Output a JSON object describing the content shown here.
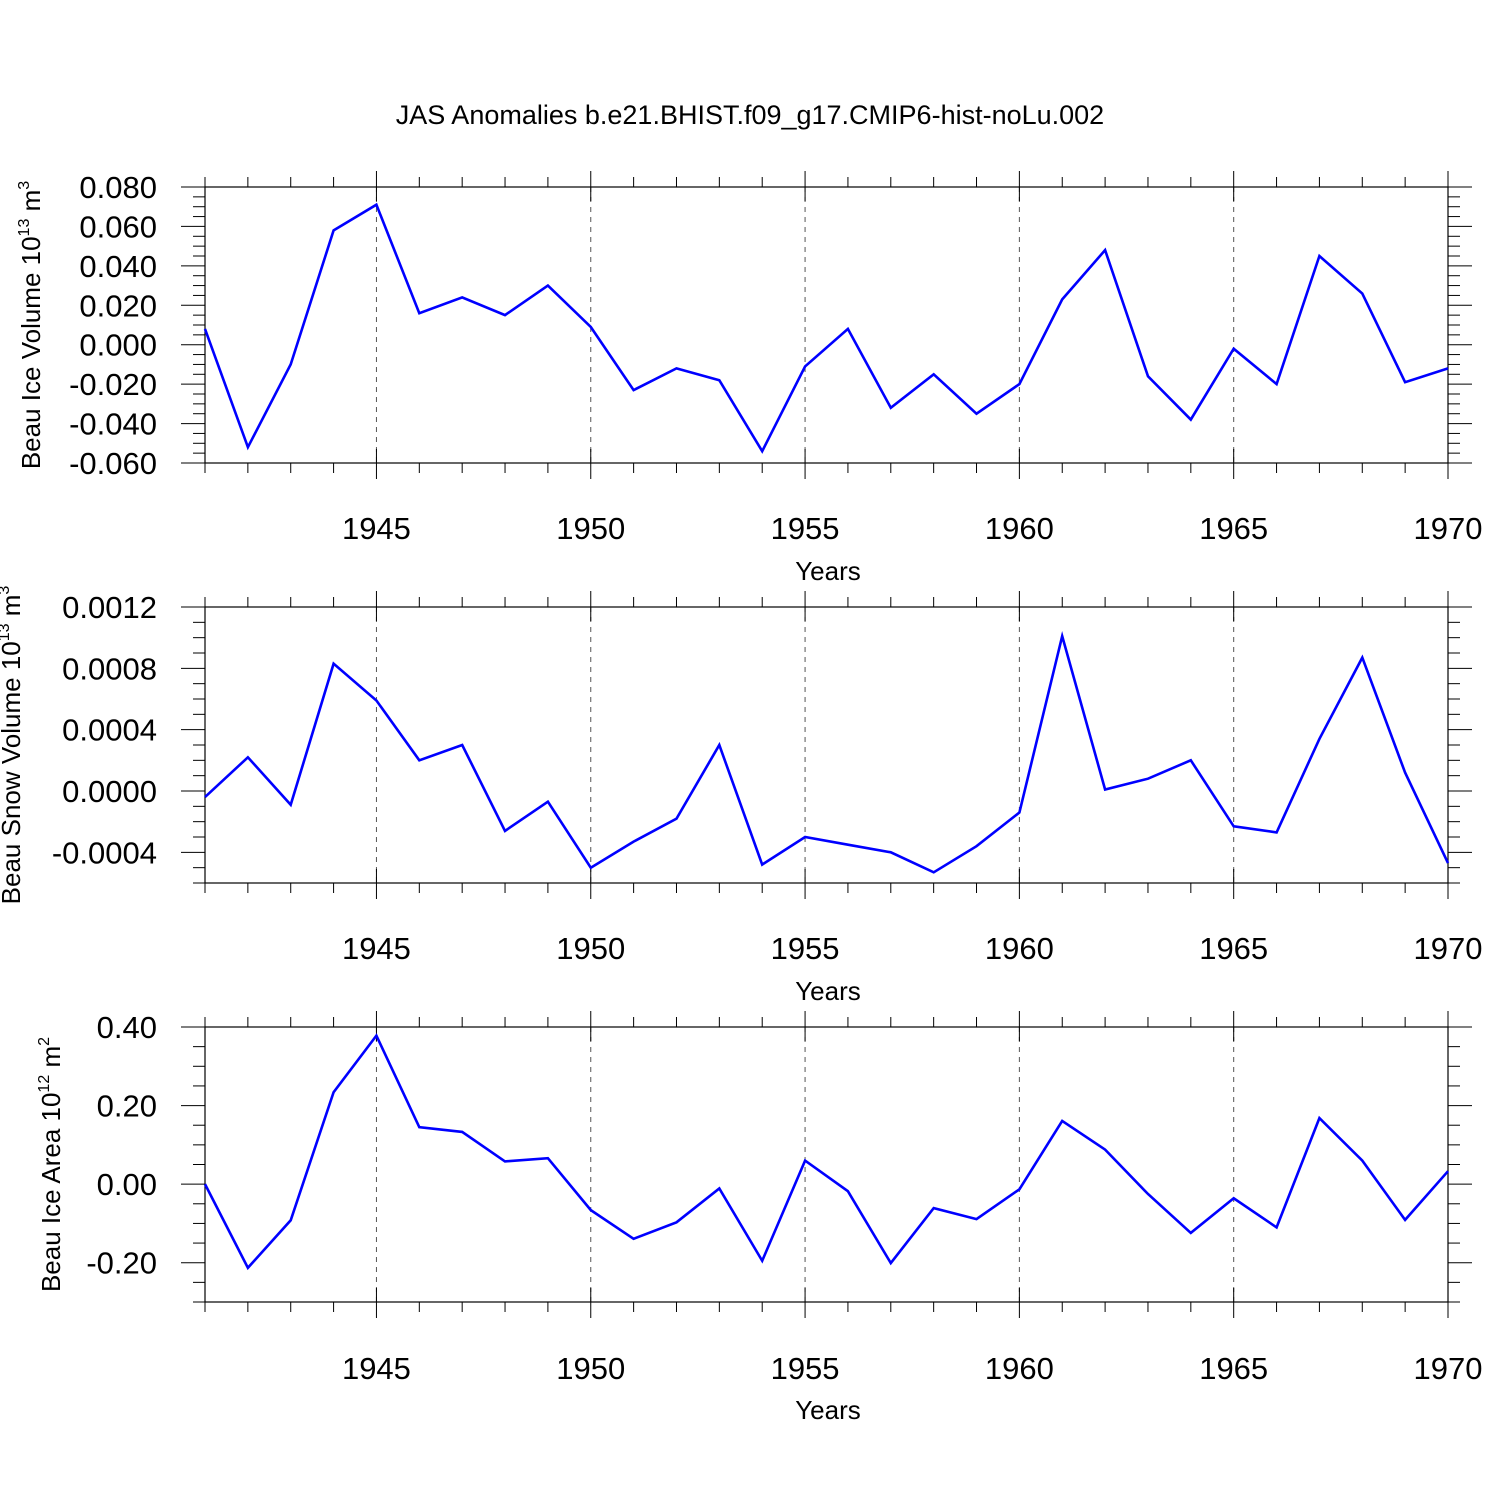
{
  "title": "JAS Anomalies b.e21.BHIST.f09_g17.CMIP6-hist-noLu.002",
  "colors": {
    "line": "#0000ff",
    "axis": "#000000",
    "grid": "#555555"
  },
  "chart_data": [
    {
      "type": "line",
      "ylabel_parts": [
        "Beau Ice Volume 10",
        "13",
        " m",
        "3"
      ],
      "xlabel": "Years",
      "xlim": [
        1941,
        1970
      ],
      "ylim": [
        -0.06,
        0.08
      ],
      "x_ticks": [
        1945,
        1950,
        1955,
        1960,
        1965,
        1970
      ],
      "x_tick_labels": [
        "1945",
        "1950",
        "1955",
        "1960",
        "1965",
        "1970"
      ],
      "y_ticks": [
        -0.06,
        -0.04,
        -0.02,
        0,
        0.02,
        0.04,
        0.06,
        0.08
      ],
      "y_tick_labels": [
        "-0.060",
        "-0.040",
        "-0.020",
        "0.000",
        "0.020",
        "0.040",
        "0.060",
        "0.080"
      ],
      "y_minor_step": 0.005,
      "grid_x": [
        1945,
        1950,
        1955,
        1960,
        1965
      ],
      "series": [
        {
          "name": "Beau Ice Volume",
          "x": [
            1941,
            1942,
            1943,
            1944,
            1945,
            1946,
            1947,
            1948,
            1949,
            1950,
            1951,
            1952,
            1953,
            1954,
            1955,
            1956,
            1957,
            1958,
            1959,
            1960,
            1961,
            1962,
            1963,
            1964,
            1965,
            1966,
            1967,
            1968,
            1969,
            1970
          ],
          "values": [
            0.008,
            -0.052,
            -0.01,
            0.058,
            0.071,
            0.016,
            0.024,
            0.015,
            0.03,
            0.009,
            -0.023,
            -0.012,
            -0.018,
            -0.054,
            -0.011,
            0.008,
            -0.032,
            -0.015,
            -0.035,
            -0.02,
            0.023,
            0.048,
            -0.016,
            -0.038,
            -0.002,
            -0.02,
            0.045,
            0.026,
            -0.019,
            -0.012
          ]
        }
      ]
    },
    {
      "type": "line",
      "ylabel_parts": [
        "Beau Snow Volume 10",
        "13",
        " m",
        "3"
      ],
      "xlabel": "Years",
      "xlim": [
        1941,
        1970
      ],
      "ylim": [
        -0.0006,
        0.0012
      ],
      "x_ticks": [
        1945,
        1950,
        1955,
        1960,
        1965,
        1970
      ],
      "x_tick_labels": [
        "1945",
        "1950",
        "1955",
        "1960",
        "1965",
        "1970"
      ],
      "y_ticks": [
        -0.0004,
        0,
        0.0004,
        0.0008,
        0.0012
      ],
      "y_tick_labels": [
        "-0.0004",
        "0.0000",
        "0.0004",
        "0.0008",
        "0.0012"
      ],
      "y_minor_step": 0.0001,
      "grid_x": [
        1945,
        1950,
        1955,
        1960,
        1965
      ],
      "series": [
        {
          "name": "Beau Snow Volume",
          "x": [
            1941,
            1942,
            1943,
            1944,
            1945,
            1946,
            1947,
            1948,
            1949,
            1950,
            1951,
            1952,
            1953,
            1954,
            1955,
            1956,
            1957,
            1958,
            1959,
            1960,
            1961,
            1962,
            1963,
            1964,
            1965,
            1966,
            1967,
            1968,
            1969,
            1970
          ],
          "values": [
            -4e-05,
            0.00022,
            -9e-05,
            0.00083,
            0.00059,
            0.0002,
            0.0003,
            -0.00026,
            -7e-05,
            -0.0005,
            -0.00033,
            -0.00018,
            0.0003,
            -0.00048,
            -0.0003,
            -0.00035,
            -0.0004,
            -0.00053,
            -0.00036,
            -0.00014,
            0.00101,
            1e-05,
            8e-05,
            0.0002,
            -0.00023,
            -0.00027,
            0.00034,
            0.00087,
            0.00012,
            -0.00047
          ]
        }
      ]
    },
    {
      "type": "line",
      "ylabel_parts": [
        "Beau Ice Area 10",
        "12",
        " m",
        "2"
      ],
      "xlabel": "Years",
      "xlim": [
        1941,
        1970
      ],
      "ylim": [
        -0.3,
        0.4
      ],
      "x_ticks": [
        1945,
        1950,
        1955,
        1960,
        1965,
        1970
      ],
      "x_tick_labels": [
        "1945",
        "1950",
        "1955",
        "1960",
        "1965",
        "1970"
      ],
      "y_ticks": [
        -0.2,
        0,
        0.2,
        0.4
      ],
      "y_tick_labels": [
        "-0.20",
        "0.00",
        "0.20",
        "0.40"
      ],
      "y_minor_step": 0.05,
      "grid_x": [
        1945,
        1950,
        1955,
        1960,
        1965
      ],
      "series": [
        {
          "name": "Beau Ice Area",
          "x": [
            1941,
            1942,
            1943,
            1944,
            1945,
            1946,
            1947,
            1948,
            1949,
            1950,
            1951,
            1952,
            1953,
            1954,
            1955,
            1956,
            1957,
            1958,
            1959,
            1960,
            1961,
            1962,
            1963,
            1964,
            1965,
            1966,
            1967,
            1968,
            1969,
            1970
          ],
          "values": [
            0.0,
            -0.213,
            -0.092,
            0.234,
            0.378,
            0.145,
            0.133,
            0.058,
            0.066,
            -0.066,
            -0.139,
            -0.097,
            -0.011,
            -0.195,
            0.06,
            -0.018,
            -0.201,
            -0.061,
            -0.089,
            -0.013,
            0.161,
            0.088,
            -0.025,
            -0.124,
            -0.036,
            -0.11,
            0.168,
            0.06,
            -0.091,
            0.033
          ]
        }
      ]
    }
  ]
}
